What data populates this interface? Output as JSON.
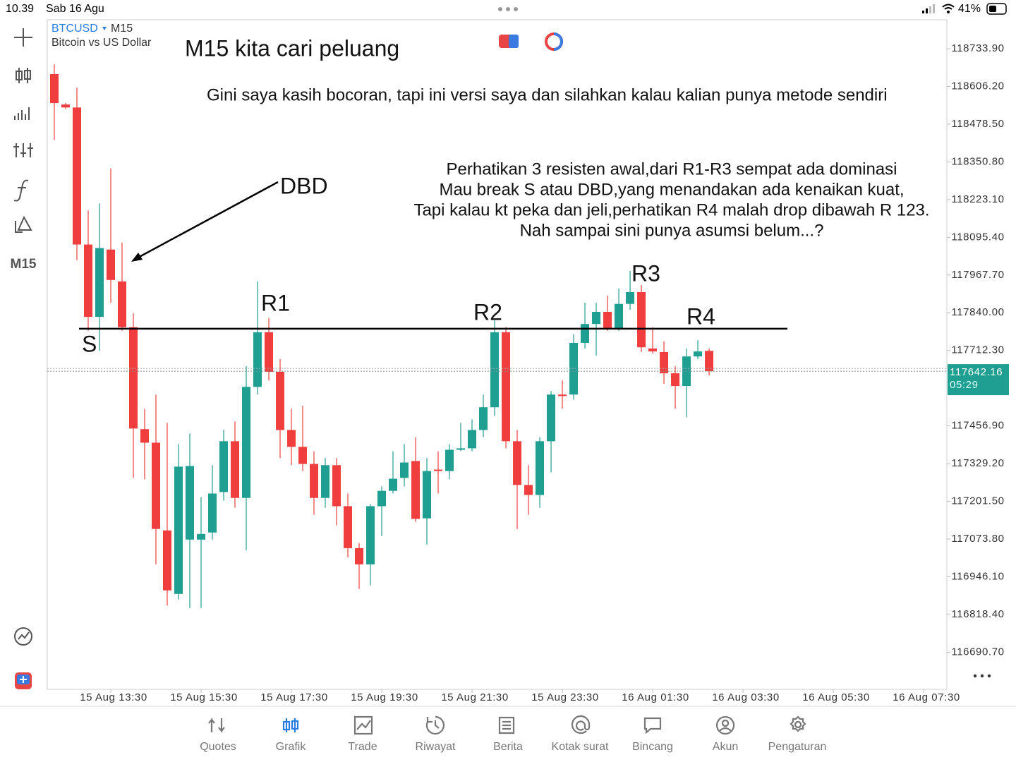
{
  "status_bar": {
    "time": "10.39",
    "date": "Sab 16 Agu",
    "battery": "41%"
  },
  "symbol": {
    "ticker": "BTCUSD",
    "timeframe": "M15",
    "description": "Bitcoin vs US Dollar"
  },
  "toolbar": {
    "timeframe": "M15"
  },
  "chart_data": {
    "type": "candlestick",
    "annotations": {
      "title": "M15 kita cari peluang",
      "subtitle": "Gini saya kasih bocoran, tapi ini versi saya dan silahkan kalau kalian punya metode sendiri",
      "note_lines": [
        "Perhatikan 3 resisten awal,dari R1-R3 sempat ada dominasi",
        "Mau break S atau DBD,yang menandakan ada kenaikan kuat,",
        "Tapi kalau kt peka dan jeli,perhatikan R4 malah drop dibawah R 123.",
        "Nah sampai sini punya asumsi belum...?"
      ],
      "dbd": "DBD",
      "s": "S",
      "r1": "R1",
      "r2": "R2",
      "r3": "R3",
      "r4": "R4"
    },
    "level": 117786,
    "opens": [
      118648,
      118545,
      118535,
      118071,
      117826,
      118054,
      117946,
      117791,
      117446,
      117400,
      117103,
      116888,
      117072,
      117072,
      117096,
      117233,
      117405,
      117213,
      117589,
      117774,
      117640,
      117443,
      117386,
      117328,
      117213,
      117324,
      117185,
      117043,
      116988,
      117185,
      117237,
      117281,
      117338,
      117144,
      117309,
      117304,
      117376,
      117381,
      117443,
      117520,
      117774,
      117405,
      117257,
      117223,
      117405,
      117563,
      117563,
      117738,
      117802,
      117843,
      117786,
      117870,
      117910,
      117719,
      117707,
      117635,
      117592,
      117692,
      117711
    ],
    "highs": [
      118681,
      118550,
      118602,
      118186,
      118210,
      118329,
      118078,
      117838,
      117515,
      117563,
      117467,
      117395,
      117431,
      117216,
      117324,
      117443,
      117472,
      117659,
      117946,
      117822,
      117683,
      117515,
      117525,
      117371,
      117348,
      117348,
      117228,
      117060,
      117192,
      117252,
      117371,
      117395,
      117419,
      117348,
      117371,
      117395,
      117467,
      117479,
      117563,
      117814,
      117791,
      117443,
      117324,
      117419,
      117575,
      117611,
      117767,
      117874,
      117874,
      117898,
      117922,
      117982,
      117934,
      117791,
      117743,
      117659,
      117719,
      117747,
      117719
    ],
    "lows": [
      118425,
      118530,
      118018,
      117779,
      117711,
      117874,
      117779,
      117281,
      117276,
      116988,
      116849,
      116869,
      116840,
      116840,
      117072,
      117204,
      117180,
      117036,
      117563,
      117611,
      117348,
      117324,
      117304,
      117156,
      117180,
      117120,
      117012,
      116905,
      116917,
      117084,
      117228,
      117252,
      117132,
      117055,
      117228,
      117276,
      117371,
      117371,
      117419,
      117491,
      117381,
      117108,
      117156,
      117180,
      117300,
      117515,
      117546,
      117719,
      117695,
      117779,
      117779,
      117850,
      117707,
      117702,
      117599,
      117515,
      117486,
      117683,
      117628
    ],
    "closes": [
      118550,
      118535,
      118071,
      117826,
      118059,
      117951,
      117791,
      117448,
      117400,
      117108,
      116900,
      117319,
      117321,
      117091,
      117228,
      117405,
      117213,
      117589,
      117774,
      117640,
      117443,
      117386,
      117328,
      117213,
      117324,
      117185,
      117043,
      116988,
      117185,
      117237,
      117278,
      117333,
      117142,
      117304,
      117304,
      117376,
      117381,
      117443,
      117520,
      117774,
      117405,
      117257,
      117223,
      117405,
      117563,
      117558,
      117738,
      117802,
      117843,
      117786,
      117870,
      117910,
      117723,
      117709,
      117635,
      117592,
      117692,
      117709,
      117642
    ],
    "up_color": "#1f9e92",
    "down_color": "#f03e3e",
    "xlim": [
      -0.625,
      79.06
    ],
    "xticks": [
      {
        "value": 5,
        "label": "15 Aug 13:30"
      },
      {
        "value": 13,
        "label": "15 Aug 15:30"
      },
      {
        "value": 21,
        "label": "15 Aug 17:30"
      },
      {
        "value": 29,
        "label": "15 Aug 19:30"
      },
      {
        "value": 37,
        "label": "15 Aug 21:30"
      },
      {
        "value": 45,
        "label": "15 Aug 23:30"
      },
      {
        "value": 53,
        "label": "16 Aug 01:30"
      },
      {
        "value": 61,
        "label": "16 Aug 03:30"
      },
      {
        "value": 69,
        "label": "16 Aug 05:30"
      },
      {
        "value": 77,
        "label": "16 Aug 07:30"
      }
    ],
    "ylim": [
      116565,
      118832
    ],
    "yticks": [
      {
        "value": 118733.9,
        "label": "118733.90"
      },
      {
        "value": 118606.2,
        "label": "118606.20"
      },
      {
        "value": 118478.5,
        "label": "118478.50"
      },
      {
        "value": 118350.8,
        "label": "118350.80"
      },
      {
        "value": 118223.1,
        "label": "118223.10"
      },
      {
        "value": 118095.4,
        "label": "118095.40"
      },
      {
        "value": 117967.7,
        "label": "117967.70"
      },
      {
        "value": 117840,
        "label": "117840.00"
      },
      {
        "value": 117712.3,
        "label": "117712.30"
      },
      {
        "value": 117456.9,
        "label": "117456.90"
      },
      {
        "value": 117329.2,
        "label": "117329.20"
      },
      {
        "value": 117201.5,
        "label": "117201.50"
      },
      {
        "value": 117073.8,
        "label": "117073.80"
      },
      {
        "value": 116946.1,
        "label": "116946.10"
      },
      {
        "value": 116818.4,
        "label": "116818.40"
      },
      {
        "value": 116690.7,
        "label": "116690.70"
      }
    ],
    "current_price": {
      "value": 117642.16,
      "label": "117642.16",
      "timer": "05:29",
      "color": "#1f9e92"
    }
  },
  "nav": [
    "Quotes",
    "Grafik",
    "Trade",
    "Riwayat",
    "Berita",
    "Kotak surat",
    "Bincang",
    "Akun",
    "Pengaturan"
  ]
}
